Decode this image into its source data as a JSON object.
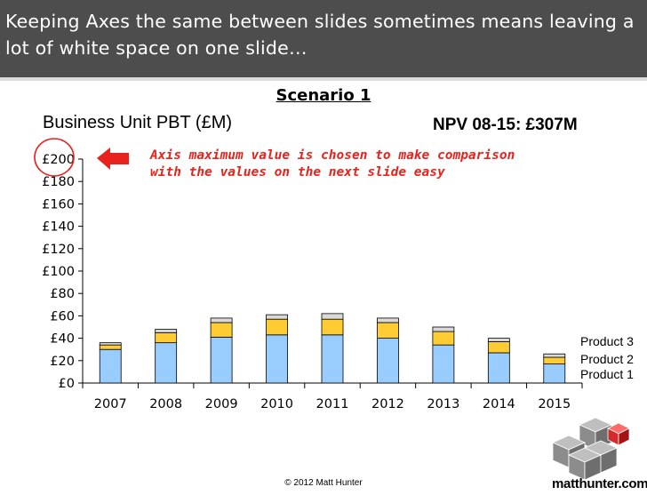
{
  "header": {
    "title": "Keeping Axes the same between slides sometimes means leaving a lot of white space on one slide…"
  },
  "slide": {
    "scenario": "Scenario 1",
    "npv": "NPV 08-15: £307M",
    "annotation": "Axis maximum value is chosen to make comparison with the values on the next slide easy",
    "footer": "© 2012 Matt Hunter",
    "logo_text": "matthunter.com"
  },
  "colors": {
    "header_bg": "#4d4d4d",
    "product1": "#99ccff",
    "product2": "#ffcc33",
    "product3": "#d9d9d9",
    "annotation": "#e8221c"
  },
  "chart_data": {
    "type": "bar",
    "stacked": true,
    "title": "Business Unit PBT (£M)",
    "xlabel": "",
    "ylabel": "",
    "categories": [
      "2007",
      "2008",
      "2009",
      "2010",
      "2011",
      "2012",
      "2013",
      "2014",
      "2015"
    ],
    "series": [
      {
        "name": "Product 1",
        "values": [
          30,
          36,
          41,
          43,
          43,
          40,
          34,
          27,
          17
        ]
      },
      {
        "name": "Product 2",
        "values": [
          4,
          9,
          13,
          14,
          14,
          14,
          12,
          10,
          6
        ]
      },
      {
        "name": "Product 3",
        "values": [
          2,
          3,
          4,
          4,
          5,
          4,
          4,
          3,
          3
        ]
      }
    ],
    "ylim": [
      0,
      200
    ],
    "yticks": [
      0,
      20,
      40,
      60,
      80,
      100,
      120,
      140,
      160,
      180,
      200
    ],
    "ytick_labels": [
      "£0",
      "£20",
      "£40",
      "£60",
      "£80",
      "£100",
      "£120",
      "£140",
      "£160",
      "£180",
      "£200"
    ],
    "grid": false,
    "legend": "right, labels beside last bar"
  }
}
